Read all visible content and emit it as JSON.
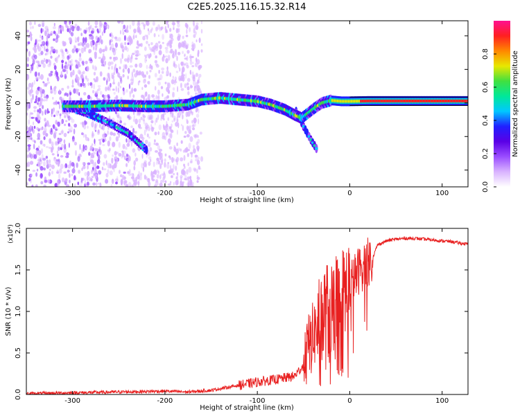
{
  "title": "C2E5.2025.116.15.32.R14",
  "chart_data": [
    {
      "type": "heatmap",
      "xlabel": "Height of straight line (km)",
      "ylabel": "Frequency (Hz)",
      "xlim": [
        -350,
        128
      ],
      "ylim": [
        -50,
        49
      ],
      "xticks": [
        -300,
        -200,
        -100,
        0,
        100
      ],
      "yticks": [
        -40,
        -20,
        0,
        20,
        40
      ],
      "colorbar": {
        "label": "Normalized spectral amplitude",
        "range": [
          0,
          1
        ],
        "ticks": [
          0.0,
          0.2,
          0.4,
          0.6,
          0.8
        ],
        "tick_labels": [
          "0.0",
          "0.2",
          "0.4",
          "0.6",
          "0.8"
        ],
        "colors": [
          "#ffffff",
          "#d9b3ff",
          "#9a4dff",
          "#5a00e6",
          "#2020ff",
          "#00c8ff",
          "#00e89a",
          "#40e040",
          "#e8e800",
          "#ff8800",
          "#ff2020",
          "#ff1090"
        ]
      },
      "main_trace": [
        [
          -310,
          -2
        ],
        [
          -280,
          -2
        ],
        [
          -250,
          -1.5
        ],
        [
          -220,
          -2
        ],
        [
          -200,
          -2
        ],
        [
          -175,
          -1
        ],
        [
          -160,
          2
        ],
        [
          -140,
          3
        ],
        [
          -120,
          2
        ],
        [
          -100,
          1
        ],
        [
          -85,
          -1
        ],
        [
          -70,
          -4
        ],
        [
          -60,
          -7
        ],
        [
          -52,
          -9
        ],
        [
          -45,
          -6
        ],
        [
          -38,
          -3
        ],
        [
          -30,
          0
        ],
        [
          -20,
          1.5
        ],
        [
          -10,
          1
        ],
        [
          0,
          1
        ],
        [
          20,
          1.2
        ],
        [
          60,
          1.2
        ],
        [
          100,
          1.2
        ],
        [
          128,
          1.2
        ]
      ],
      "secondary_trace": [
        [
          -300,
          -3
        ],
        [
          -280,
          -7
        ],
        [
          -260,
          -12
        ],
        [
          -240,
          -18
        ],
        [
          -220,
          -28
        ]
      ],
      "tertiary_trace": [
        [
          -58,
          -5
        ],
        [
          -50,
          -14
        ],
        [
          -42,
          -22
        ],
        [
          -35,
          -28
        ]
      ],
      "noise_region_end": -170
    },
    {
      "type": "line",
      "xlabel": "Height of straight line (km)",
      "ylabel": "SNR (10 * v/v)",
      "multiplier_label": "(x10⁴)",
      "xlim": [
        -350,
        128
      ],
      "ylim": [
        0,
        2.0
      ],
      "xticks": [
        -300,
        -200,
        -100,
        0,
        100
      ],
      "yticks": [
        0.0,
        0.5,
        1.0,
        1.5,
        2.0
      ],
      "color": "#e82020",
      "series": [
        {
          "x": [
            -350,
            -300,
            -250,
            -200,
            -175,
            -150,
            -125,
            -100,
            -80,
            -70,
            -60,
            -50,
            -45,
            -40,
            -35,
            -30,
            -25,
            -20,
            -15,
            -10,
            -5,
            0,
            5,
            10,
            15,
            20,
            25,
            30,
            40,
            50,
            60,
            70,
            80,
            90,
            100,
            110,
            120,
            128
          ],
          "values": [
            0.01,
            0.02,
            0.03,
            0.04,
            0.03,
            0.05,
            0.1,
            0.15,
            0.18,
            0.2,
            0.22,
            0.35,
            0.55,
            0.7,
            0.8,
            0.9,
            0.95,
            1.0,
            1.05,
            1.1,
            1.2,
            1.3,
            1.4,
            1.5,
            1.55,
            1.6,
            1.65,
            1.8,
            1.85,
            1.87,
            1.88,
            1.88,
            1.87,
            1.86,
            1.85,
            1.84,
            1.82,
            1.81
          ]
        }
      ]
    }
  ]
}
